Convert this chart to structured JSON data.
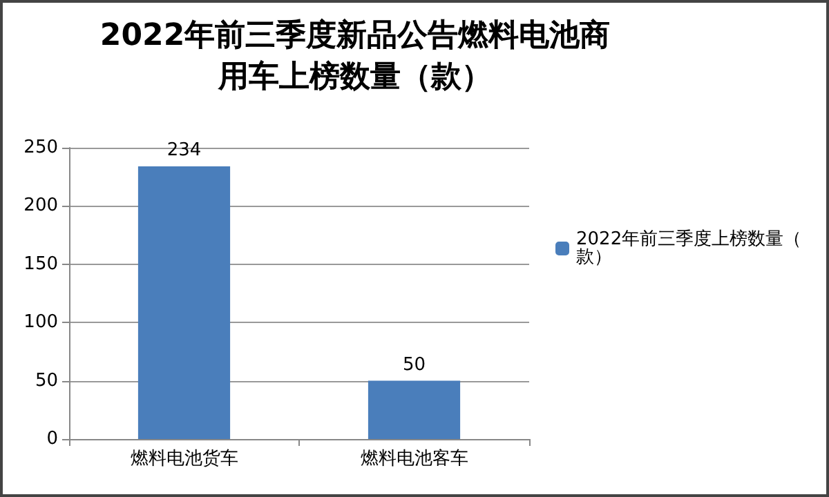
{
  "chart_data": {
    "type": "bar",
    "title": "2022年前三季度新品公告燃料电池商用车上榜数量（款）",
    "categories": [
      "燃料电池货车",
      "燃料电池客车"
    ],
    "series": [
      {
        "name": "2022年前三季度上榜数量（款）",
        "color": "#4a7ebb",
        "values": [
          234,
          50
        ]
      }
    ],
    "ylim": [
      0,
      250
    ],
    "yticks": [
      0,
      50,
      100,
      150,
      200,
      250
    ],
    "grid": "y",
    "legend": "right",
    "data_labels": true
  }
}
